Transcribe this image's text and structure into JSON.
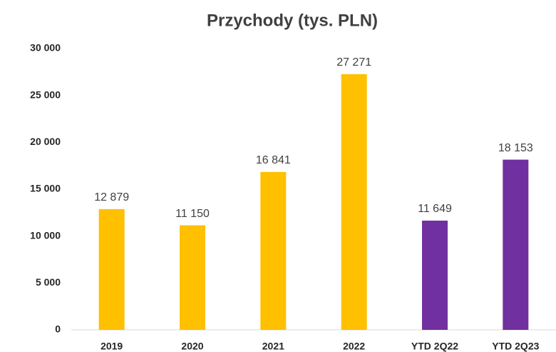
{
  "chart_data": {
    "type": "bar",
    "title": "Przychody (tys. PLN)",
    "categories": [
      "2019",
      "2020",
      "2021",
      "2022",
      "YTD 2Q22",
      "YTD 2Q23"
    ],
    "values": [
      12879,
      11150,
      16841,
      27271,
      11649,
      18153
    ],
    "value_labels": [
      "12 879",
      "11 150",
      "16 841",
      "27 271",
      "11 649",
      "18 153"
    ],
    "colors": [
      "#FFC000",
      "#FFC000",
      "#FFC000",
      "#FFC000",
      "#7030A0",
      "#7030A0"
    ],
    "ylim": [
      0,
      30000
    ],
    "yticks": [
      0,
      {
        "value": 5000,
        "label": "5 000"
      },
      {
        "value": 10000,
        "label": "10 000"
      },
      {
        "value": 15000,
        "label": "15 000"
      },
      {
        "value": 20000,
        "label": "20 000"
      },
      {
        "value": 25000,
        "label": "25 000"
      },
      {
        "value": 30000,
        "label": "30 000"
      }
    ],
    "grid": false
  }
}
